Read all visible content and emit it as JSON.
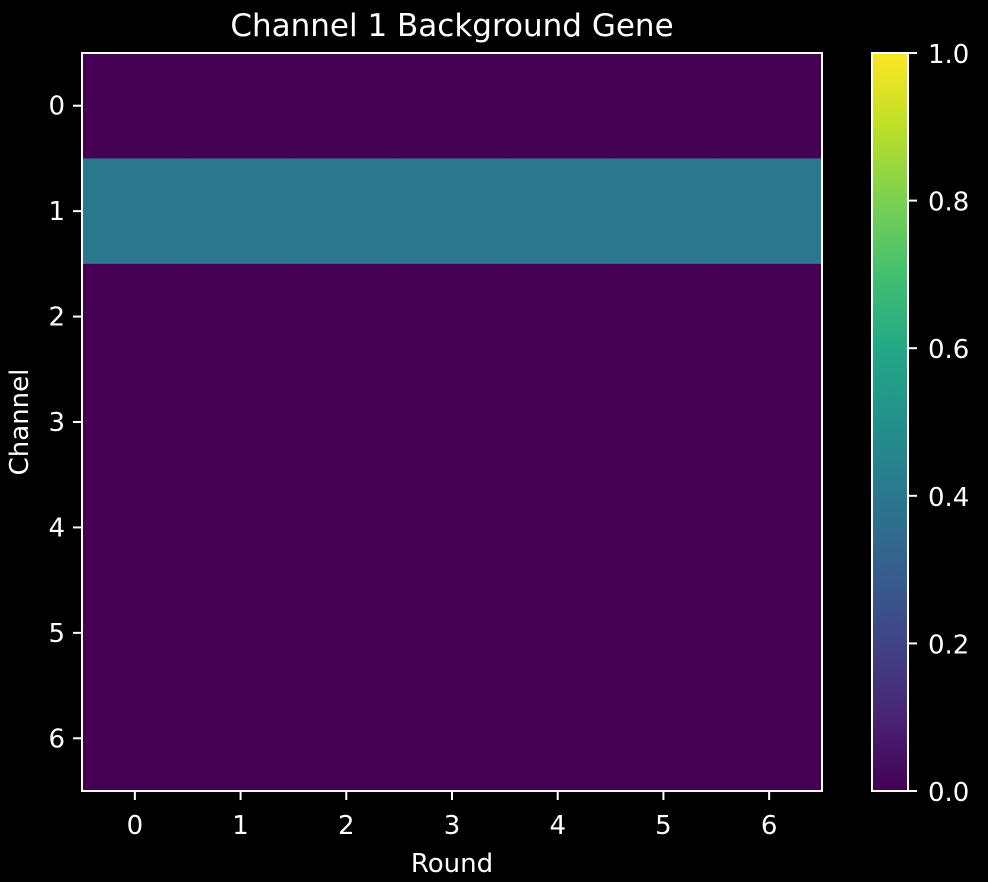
{
  "chart_data": {
    "type": "heatmap",
    "title": "Channel 1 Background Gene",
    "xlabel": "Round",
    "ylabel": "Channel",
    "x_ticks": [
      "0",
      "1",
      "2",
      "3",
      "4",
      "5",
      "6"
    ],
    "y_ticks": [
      "0",
      "1",
      "2",
      "3",
      "4",
      "5",
      "6"
    ],
    "values": [
      [
        0,
        0,
        0,
        0,
        0,
        0,
        0
      ],
      [
        0.4,
        0.4,
        0.4,
        0.4,
        0.4,
        0.4,
        0.4
      ],
      [
        0,
        0,
        0,
        0,
        0,
        0,
        0
      ],
      [
        0,
        0,
        0,
        0,
        0,
        0,
        0
      ],
      [
        0,
        0,
        0,
        0,
        0,
        0,
        0
      ],
      [
        0,
        0,
        0,
        0,
        0,
        0,
        0
      ],
      [
        0,
        0,
        0,
        0,
        0,
        0,
        0
      ]
    ],
    "colormap": "viridis",
    "vmin": 0,
    "vmax": 1,
    "colorbar_ticks": [
      "0.0",
      "0.2",
      "0.4",
      "0.6",
      "0.8",
      "1.0"
    ],
    "colors": {
      "background": "#000000",
      "foreground": "#ffffff"
    }
  }
}
